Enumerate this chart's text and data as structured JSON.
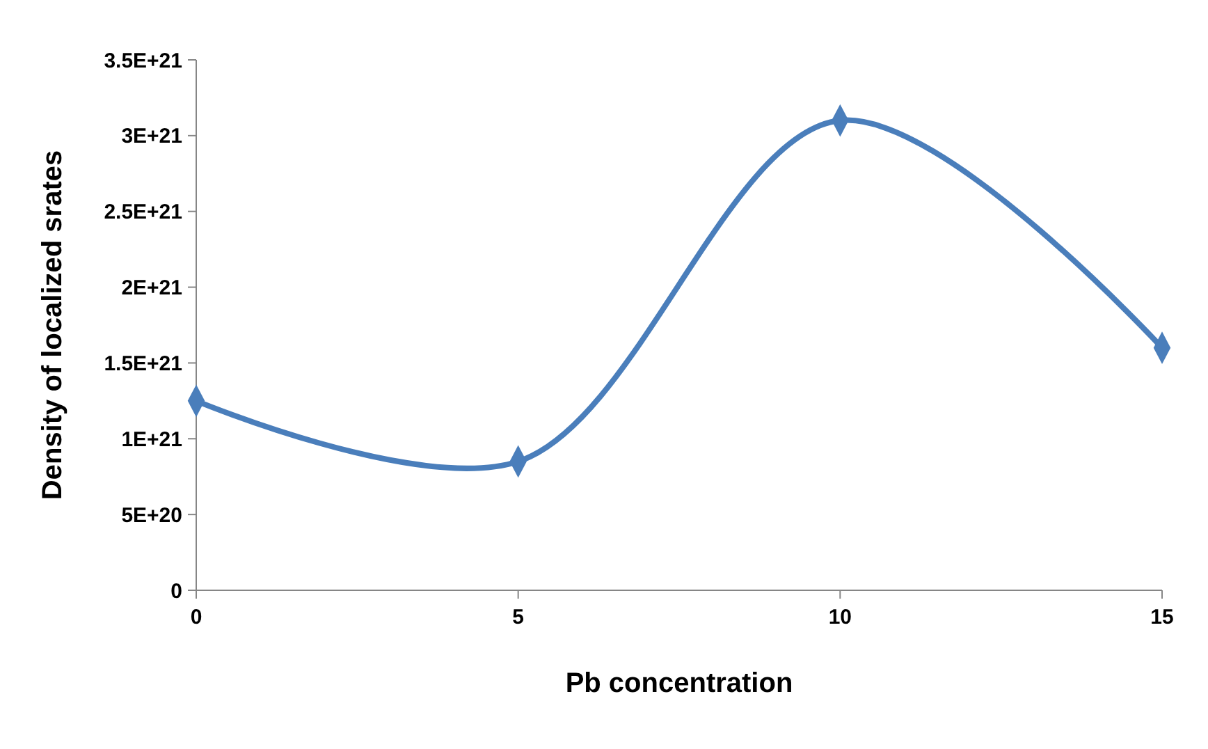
{
  "chart_data": {
    "type": "line",
    "xlabel": "Pb concentration",
    "ylabel": "Density of localized srates",
    "x": [
      0,
      5,
      10,
      15
    ],
    "series": [
      {
        "color": "#4a7ebb",
        "values": [
          1.25e+21,
          8.5e+20,
          3.1e+21,
          1.6e+21
        ]
      }
    ],
    "xlim": [
      0,
      15
    ],
    "xticks": [
      0,
      5,
      10,
      15
    ],
    "ylim": [
      0,
      3.5e+21
    ],
    "yticks": [
      {
        "value": 0,
        "label": "0"
      },
      {
        "value": 5e+20,
        "label": "5E+20"
      },
      {
        "value": 1e+21,
        "label": "1E+21"
      },
      {
        "value": 1.5e+21,
        "label": "1.5E+21"
      },
      {
        "value": 2e+21,
        "label": "2E+21"
      },
      {
        "value": 2.5e+21,
        "label": "2.5E+21"
      },
      {
        "value": 3e+21,
        "label": "3E+21"
      },
      {
        "value": 3.5e+21,
        "label": "3.5E+21"
      }
    ],
    "marker": "diamond",
    "line_style": "solid"
  }
}
